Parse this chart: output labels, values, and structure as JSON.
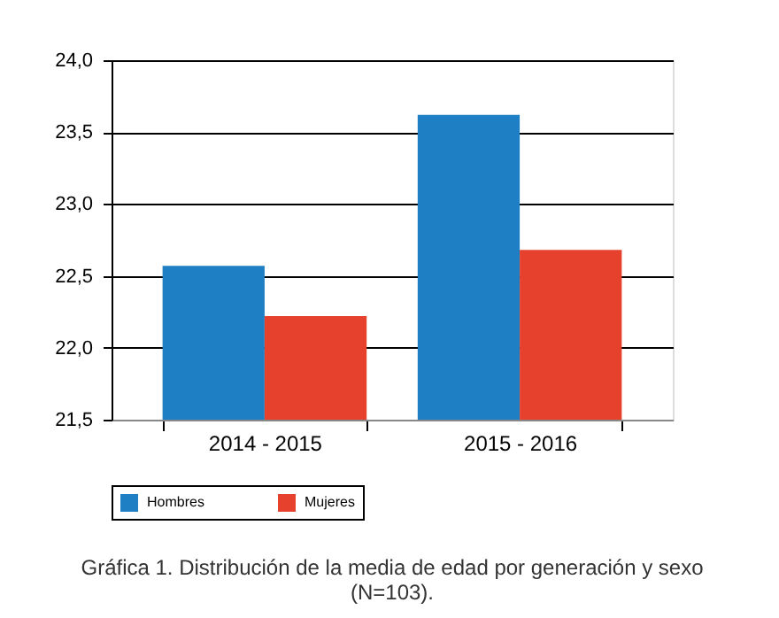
{
  "chart_data": {
    "type": "bar",
    "categories": [
      "2014 - 2015",
      "2015 - 2016"
    ],
    "series": [
      {
        "name": "Hombres",
        "color": "#1f7fc4",
        "values": [
          22.57,
          23.62
        ]
      },
      {
        "name": "Mujeres",
        "color": "#e6412c",
        "values": [
          22.22,
          22.68
        ]
      }
    ],
    "ylim": [
      21.5,
      24.0
    ],
    "yticks": [
      {
        "value": 21.5,
        "label": "21,5"
      },
      {
        "value": 22.0,
        "label": "22,0"
      },
      {
        "value": 22.5,
        "label": "22,5"
      },
      {
        "value": 23.0,
        "label": "23,0"
      },
      {
        "value": 23.5,
        "label": "23,5"
      },
      {
        "value": 24.0,
        "label": "24,0"
      }
    ],
    "grid": "y",
    "legend": "bottom",
    "annotations": [
      "Gráfica 1. Distribución de la media de edad por generación y sexo (N=103)."
    ]
  }
}
